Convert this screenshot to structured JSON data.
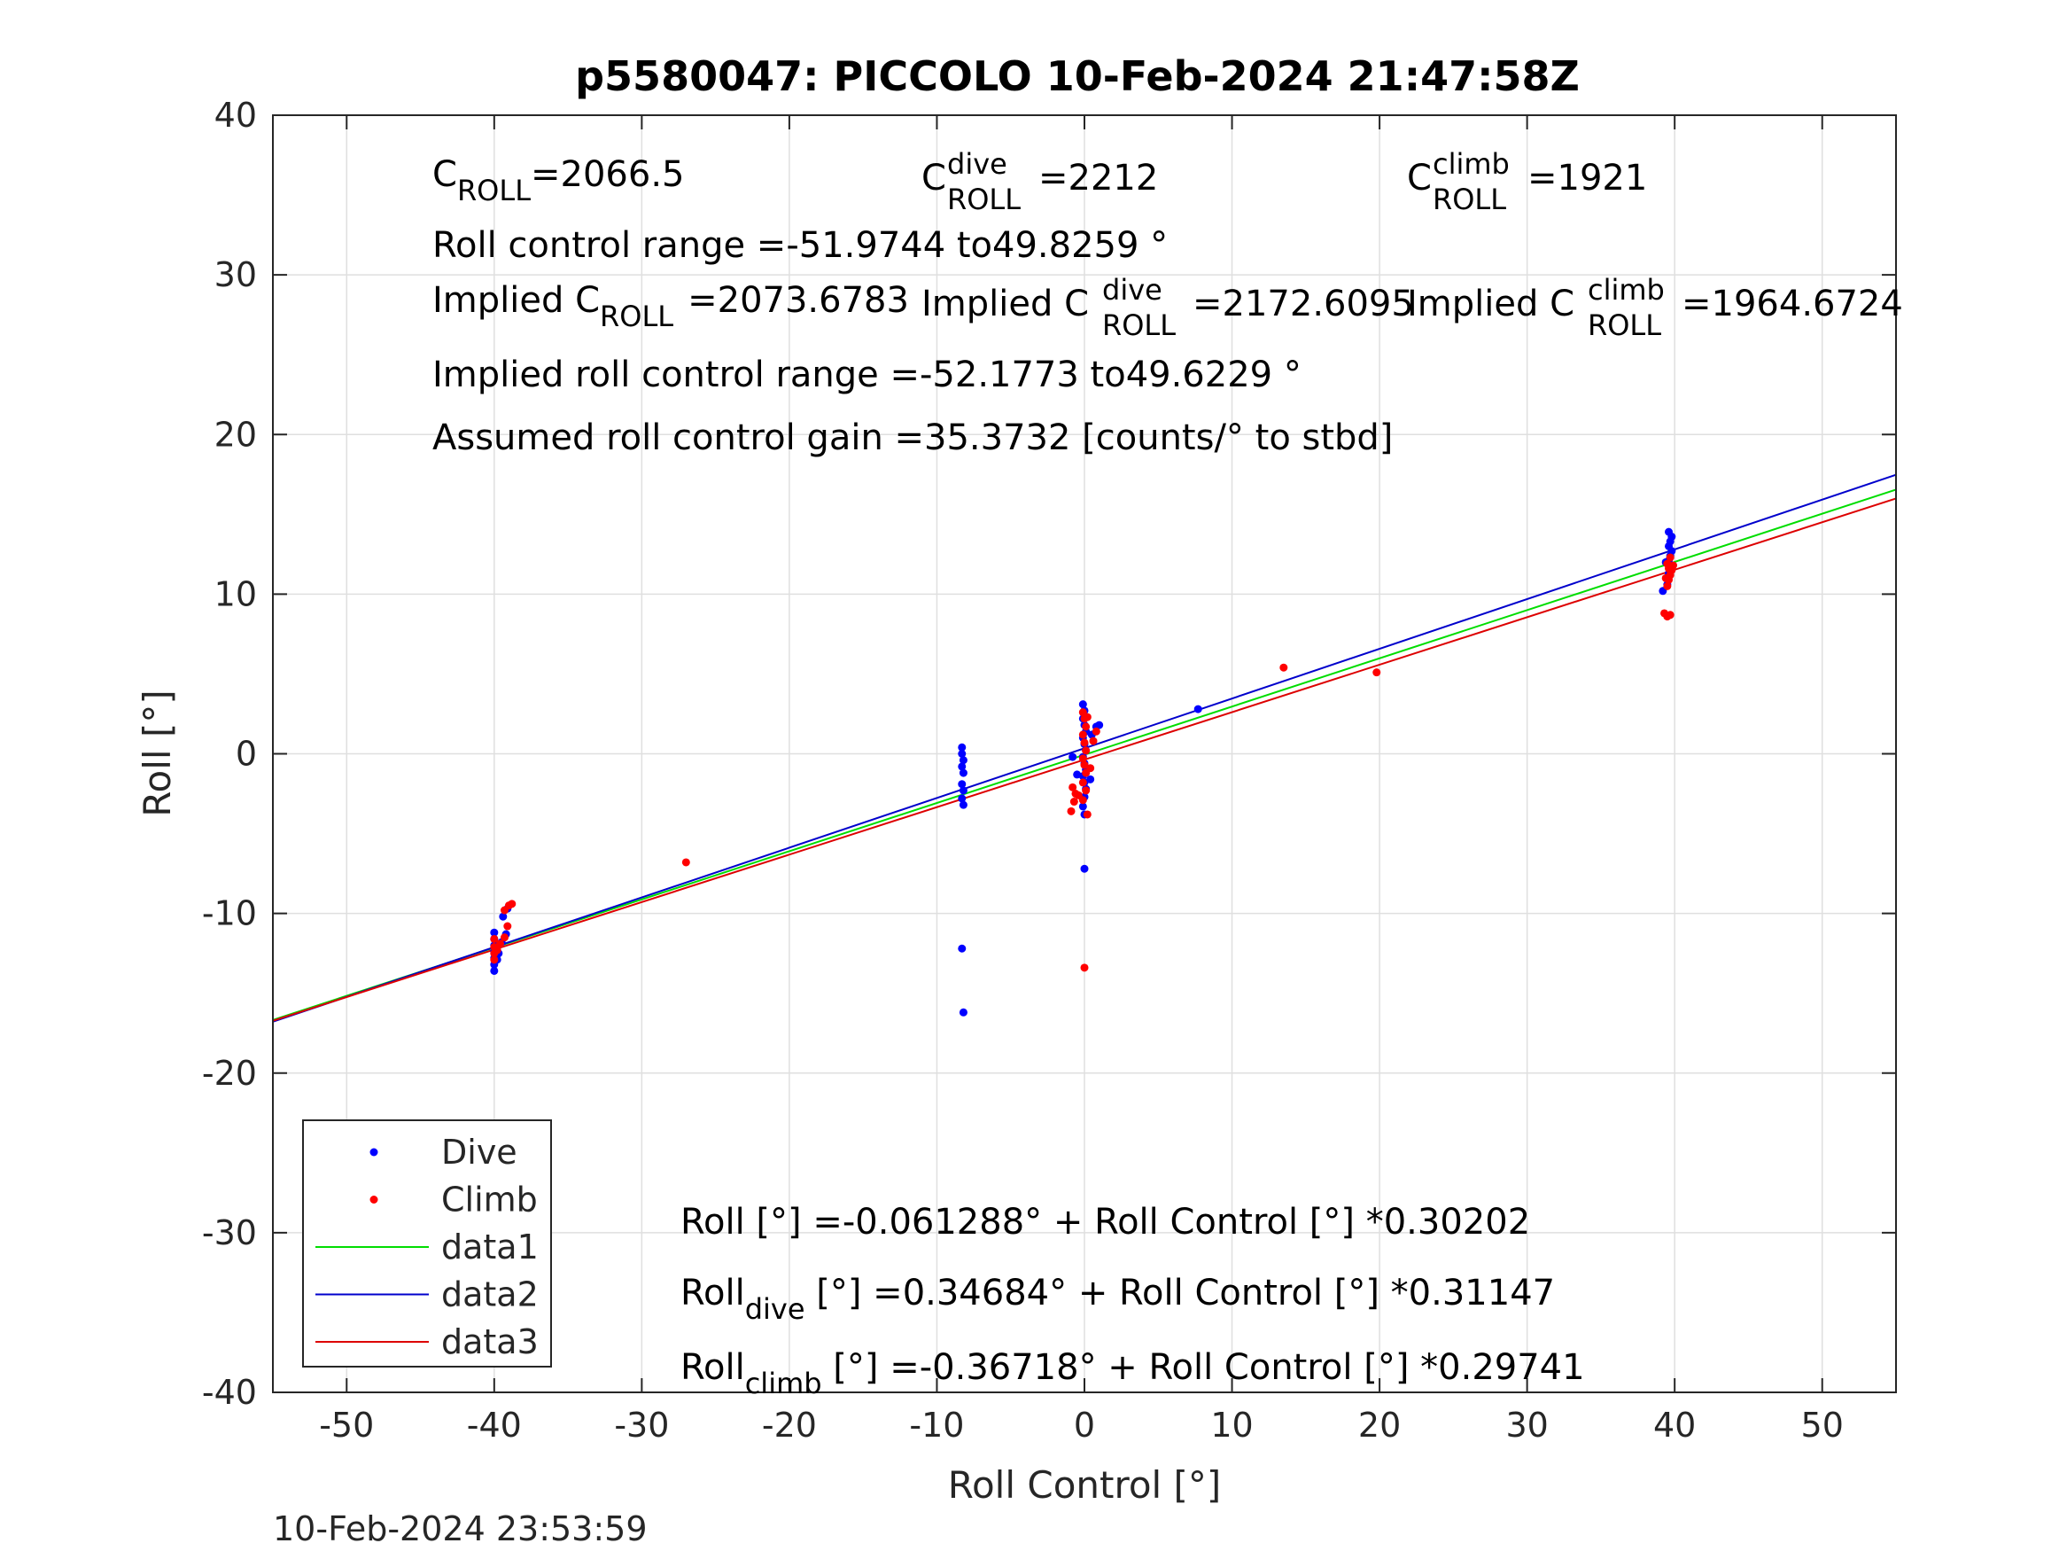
{
  "chart_data": {
    "type": "scatter",
    "title": "p5580047: PICCOLO 10-Feb-2024 21:47:58Z",
    "xlabel": "Roll Control [°]",
    "ylabel": "Roll [°]",
    "xlim": [
      -55,
      55
    ],
    "ylim": [
      -40,
      40
    ],
    "xticks": [
      -50,
      -40,
      -30,
      -20,
      -10,
      0,
      10,
      20,
      30,
      40,
      50
    ],
    "yticks": [
      -40,
      -30,
      -20,
      -10,
      0,
      10,
      20,
      30,
      40
    ],
    "grid": true,
    "legend_position": "bottom-left",
    "timestamp": "10-Feb-2024 23:53:59",
    "annotations": {
      "c_roll": {
        "main": "C",
        "sub": "ROLL",
        "value": "=2066.5"
      },
      "c_roll_dive": {
        "main": "C",
        "sup": "dive",
        "sub": "ROLL",
        "value": "=2212"
      },
      "c_roll_climb": {
        "main": "C",
        "sup": "climb",
        "sub": "ROLL",
        "value": "=1921"
      },
      "range": "Roll control range =-51.9744 to49.8259 °",
      "implied_c_roll": {
        "main": "Implied C",
        "sub": "ROLL",
        "value": "=2073.6783"
      },
      "implied_c_roll_dive": {
        "main": "Implied C",
        "sup": "dive",
        "sub": "ROLL",
        "value": "=2172.6095"
      },
      "implied_c_roll_climb": {
        "main": "Implied C",
        "sup": "climb",
        "sub": "ROLL",
        "value": "=1964.6724"
      },
      "implied_range": "Implied roll control range =-52.1773 to49.6229 °",
      "gain": "Assumed roll control gain =35.3732 [counts/° to stbd]",
      "fit_all": "Roll [°] =-0.061288° + Roll Control [°] *0.30202",
      "fit_dive": {
        "main": "Roll",
        "sub": "dive",
        "rest": " [°] =0.34684° + Roll Control [°] *0.31147"
      },
      "fit_climb": {
        "main": "Roll",
        "sub": "climb",
        "rest": " [°] =-0.36718° + Roll Control [°] *0.29741"
      }
    },
    "series": [
      {
        "name": "Dive",
        "kind": "points",
        "color": "#0000ff",
        "points": [
          [
            -40,
            -13.6
          ],
          [
            -40,
            -13.2
          ],
          [
            -40,
            -12.8
          ],
          [
            -40,
            -12.4
          ],
          [
            -40,
            -12.0
          ],
          [
            -40,
            -11.6
          ],
          [
            -40,
            -11.2
          ],
          [
            -39.7,
            -12.5
          ],
          [
            -39.5,
            -11.8
          ],
          [
            -39.2,
            -11.3
          ],
          [
            -39.4,
            -10.2
          ],
          [
            -39.1,
            -9.7
          ],
          [
            -39.8,
            -12.9
          ],
          [
            -8.3,
            0.4
          ],
          [
            -8.3,
            0.0
          ],
          [
            -8.2,
            -0.4
          ],
          [
            -8.3,
            -0.8
          ],
          [
            -8.2,
            -1.2
          ],
          [
            -8.3,
            -1.9
          ],
          [
            -8.2,
            -2.3
          ],
          [
            -8.3,
            -2.8
          ],
          [
            -8.2,
            -3.2
          ],
          [
            -8.3,
            -12.2
          ],
          [
            -8.2,
            -16.2
          ],
          [
            -0.1,
            3.1
          ],
          [
            0.0,
            2.7
          ],
          [
            -0.1,
            2.2
          ],
          [
            0.0,
            1.8
          ],
          [
            0.1,
            1.4
          ],
          [
            -0.1,
            1.0
          ],
          [
            0.0,
            0.6
          ],
          [
            0.1,
            0.2
          ],
          [
            -0.1,
            -0.2
          ],
          [
            0.0,
            -0.6
          ],
          [
            0.1,
            -1.0
          ],
          [
            -0.1,
            -1.4
          ],
          [
            0.0,
            -1.8
          ],
          [
            0.1,
            -2.2
          ],
          [
            0.0,
            -2.7
          ],
          [
            -0.1,
            -3.3
          ],
          [
            0.0,
            -3.8
          ],
          [
            0.0,
            -7.2
          ],
          [
            0.5,
            1.2
          ],
          [
            0.8,
            1.7
          ],
          [
            1.0,
            1.8
          ],
          [
            0.4,
            -1.6
          ],
          [
            -0.5,
            -1.3
          ],
          [
            -0.8,
            -0.2
          ],
          [
            7.7,
            2.8
          ],
          [
            39.2,
            10.2
          ],
          [
            39.5,
            10.6
          ],
          [
            39.6,
            11.3
          ],
          [
            39.7,
            11.7
          ],
          [
            39.6,
            12.1
          ],
          [
            39.7,
            12.4
          ],
          [
            39.8,
            12.7
          ],
          [
            39.6,
            13.0
          ],
          [
            39.7,
            13.3
          ],
          [
            39.8,
            13.6
          ],
          [
            39.6,
            13.9
          ],
          [
            39.4,
            12.0
          ]
        ]
      },
      {
        "name": "Climb",
        "kind": "points",
        "color": "#ff0000",
        "points": [
          [
            -40,
            -12.9
          ],
          [
            -40,
            -12.5
          ],
          [
            -40,
            -12.1
          ],
          [
            -40,
            -11.6
          ],
          [
            -39.8,
            -12.3
          ],
          [
            -39.6,
            -11.9
          ],
          [
            -39.3,
            -11.5
          ],
          [
            -39.1,
            -10.8
          ],
          [
            -39.3,
            -9.8
          ],
          [
            -39.0,
            -9.5
          ],
          [
            -38.8,
            -9.4
          ],
          [
            -27.0,
            -6.8
          ],
          [
            -0.9,
            -3.6
          ],
          [
            -0.7,
            -3.0
          ],
          [
            -0.6,
            -2.5
          ],
          [
            -0.8,
            -2.1
          ],
          [
            -0.4,
            -2.6
          ],
          [
            -0.1,
            -2.9
          ],
          [
            0.1,
            -2.3
          ],
          [
            -0.1,
            -1.8
          ],
          [
            0.1,
            -1.2
          ],
          [
            0.0,
            -0.7
          ],
          [
            -0.1,
            -0.3
          ],
          [
            0.1,
            0.2
          ],
          [
            0.0,
            0.7
          ],
          [
            -0.1,
            1.2
          ],
          [
            0.1,
            1.7
          ],
          [
            0.0,
            2.2
          ],
          [
            -0.1,
            2.6
          ],
          [
            0.2,
            2.3
          ],
          [
            0.4,
            -0.9
          ],
          [
            0.6,
            0.8
          ],
          [
            0.8,
            1.4
          ],
          [
            0.2,
            -3.8
          ],
          [
            0.0,
            -13.4
          ],
          [
            13.5,
            5.4
          ],
          [
            19.8,
            5.1
          ],
          [
            39.3,
            8.8
          ],
          [
            39.5,
            8.6
          ],
          [
            39.7,
            8.7
          ],
          [
            39.5,
            10.5
          ],
          [
            39.6,
            10.9
          ],
          [
            39.7,
            11.2
          ],
          [
            39.8,
            11.5
          ],
          [
            39.5,
            11.9
          ],
          [
            39.7,
            12.3
          ],
          [
            39.6,
            11.6
          ],
          [
            39.9,
            11.8
          ],
          [
            39.4,
            11.0
          ]
        ]
      },
      {
        "name": "data1",
        "kind": "line",
        "color": "#00dd00",
        "intercept": -0.061288,
        "slope": 0.30202
      },
      {
        "name": "data2",
        "kind": "line",
        "color": "#0000cc",
        "intercept": 0.34684,
        "slope": 0.31147
      },
      {
        "name": "data3",
        "kind": "line",
        "color": "#dd0000",
        "intercept": -0.36718,
        "slope": 0.29741
      }
    ]
  }
}
